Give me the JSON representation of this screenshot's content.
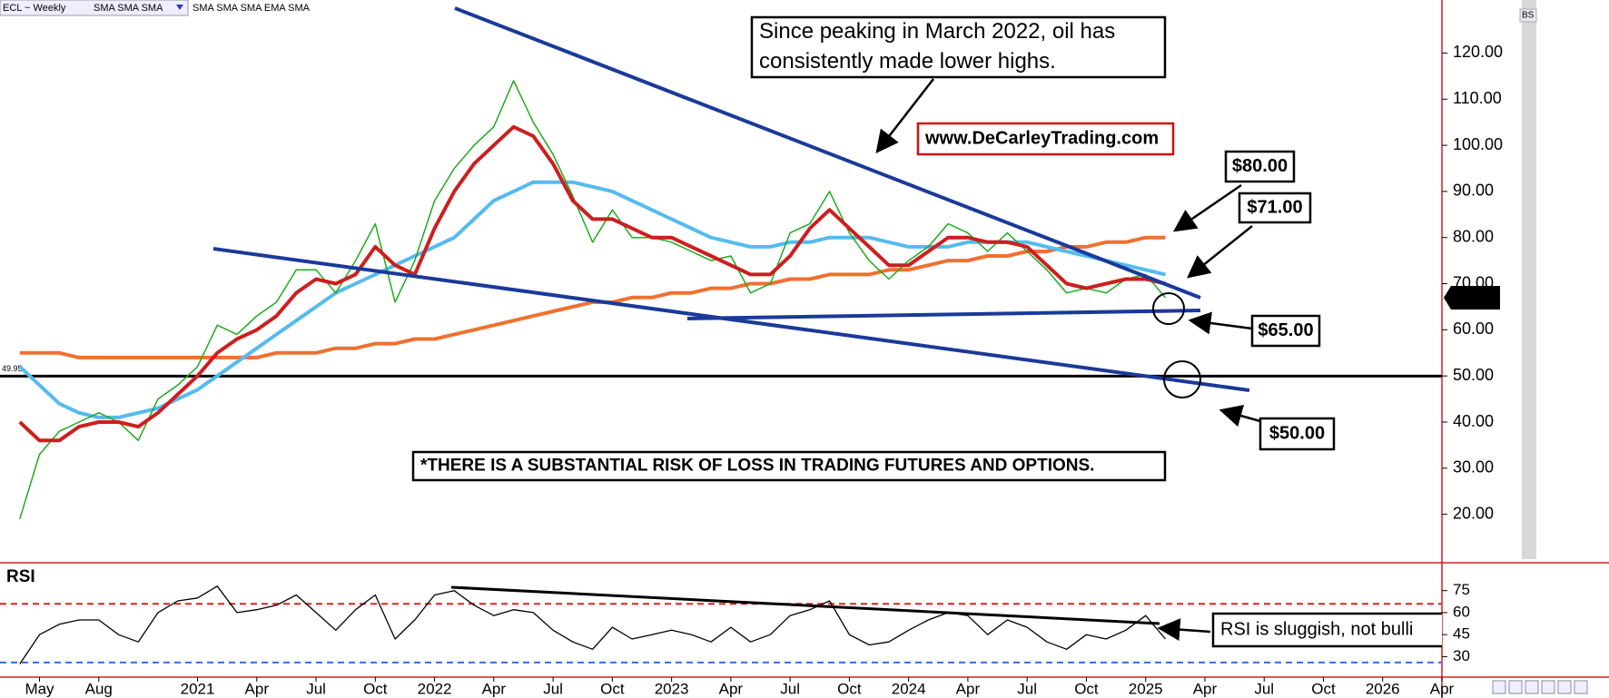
{
  "ui": {
    "symbol_label": "ECL ~ Weekly",
    "study_menu": "SMA SMA SMA",
    "studies": "SMA SMA SMA EMA SMA",
    "corner_label": "BS"
  },
  "chart_data": [
    {
      "type": "line",
      "x": [
        "2020-04",
        "2020-05",
        "2020-06",
        "2020-07",
        "2020-08",
        "2020-09",
        "2020-10",
        "2020-11",
        "2020-12",
        "2021-01",
        "2021-02",
        "2021-03",
        "2021-04",
        "2021-05",
        "2021-06",
        "2021-07",
        "2021-08",
        "2021-09",
        "2021-10",
        "2021-11",
        "2021-12",
        "2022-01",
        "2022-02",
        "2022-03",
        "2022-04",
        "2022-05",
        "2022-06",
        "2022-07",
        "2022-08",
        "2022-09",
        "2022-10",
        "2022-11",
        "2022-12",
        "2023-01",
        "2023-02",
        "2023-03",
        "2023-04",
        "2023-05",
        "2023-06",
        "2023-07",
        "2023-08",
        "2023-09",
        "2023-10",
        "2023-11",
        "2023-12",
        "2024-01",
        "2024-02",
        "2024-03",
        "2024-04",
        "2024-05",
        "2024-06",
        "2024-07",
        "2024-08",
        "2024-09",
        "2024-10",
        "2024-11",
        "2024-12",
        "2025-01",
        "2025-02"
      ],
      "xlim": [
        "2020-03",
        "2026-04"
      ],
      "ylim": [
        9.5,
        131.5
      ],
      "yticks": [
        {
          "value": 20,
          "label": "20.00"
        },
        {
          "value": 30,
          "label": "30.00"
        },
        {
          "value": 40,
          "label": "40.00"
        },
        {
          "value": 50,
          "label": "50.00"
        },
        {
          "value": 60,
          "label": "60.00"
        },
        {
          "value": 70,
          "label": "70.00"
        },
        {
          "value": 80,
          "label": "80.00"
        },
        {
          "value": 90,
          "label": "90.00"
        },
        {
          "value": 100,
          "label": "100.00"
        },
        {
          "value": 110,
          "label": "110.00"
        },
        {
          "value": 120,
          "label": "120.00"
        }
      ],
      "grid": false,
      "series": [
        {
          "color": "#f07030",
          "line_width": 4,
          "values": [
            55,
            55,
            55,
            54,
            54,
            54,
            54,
            54,
            54,
            54,
            54,
            54,
            54,
            55,
            55,
            55,
            56,
            56,
            57,
            57,
            58,
            58,
            59,
            60,
            61,
            62,
            63,
            64,
            65,
            66,
            66,
            67,
            67,
            68,
            68,
            69,
            69,
            70,
            70,
            71,
            71,
            72,
            72,
            72,
            73,
            73,
            74,
            75,
            75,
            76,
            76,
            77,
            77,
            78,
            78,
            79,
            79,
            80,
            80
          ]
        },
        {
          "color": "#55bbee",
          "line_width": 4,
          "values": [
            52,
            48,
            44,
            42,
            41,
            41,
            42,
            43,
            45,
            47,
            50,
            53,
            56,
            59,
            62,
            65,
            68,
            70,
            72,
            74,
            76,
            78,
            80,
            84,
            88,
            90,
            92,
            92,
            92,
            91,
            90,
            88,
            86,
            84,
            82,
            80,
            79,
            78,
            78,
            79,
            79,
            80,
            80,
            80,
            79,
            78,
            78,
            78,
            79,
            79,
            79,
            79,
            78,
            77,
            76,
            75,
            74,
            73,
            72
          ]
        },
        {
          "color": "#1faa1f",
          "line_width": 1.5,
          "values": [
            19,
            33,
            38,
            40,
            42,
            40,
            36,
            45,
            48,
            52,
            61,
            59,
            63,
            66,
            73,
            73,
            68,
            75,
            83,
            66,
            75,
            88,
            95,
            100,
            104,
            114,
            105,
            98,
            89,
            79,
            86,
            80,
            80,
            79,
            77,
            75,
            76,
            68,
            70,
            81,
            83,
            90,
            81,
            75,
            71,
            75,
            78,
            83,
            81,
            77,
            81,
            77,
            73,
            68,
            69,
            68,
            71,
            72,
            66.97
          ]
        },
        {
          "color": "#cc1f1f",
          "line_width": 4,
          "values": [
            40,
            36,
            36,
            39,
            40,
            40,
            39,
            42,
            46,
            50,
            55,
            58,
            60,
            63,
            68,
            71,
            70,
            72,
            78,
            74,
            72,
            82,
            90,
            96,
            100,
            104,
            102,
            96,
            88,
            84,
            84,
            82,
            80,
            80,
            78,
            76,
            74,
            72,
            72,
            76,
            82,
            86,
            82,
            78,
            74,
            74,
            77,
            80,
            80,
            79,
            79,
            78,
            74,
            70,
            69,
            70,
            71,
            71,
            70
          ]
        }
      ],
      "level_line": {
        "value": 49.95,
        "label": "49.95"
      },
      "annotations": [
        {
          "lines": [
            "Since peaking in March 2022, oil has",
            "consistently made lower highs."
          ]
        },
        {
          "text": "www.DeCarleyTrading.com"
        },
        {
          "text": "$80.00"
        },
        {
          "text": "$71.00"
        },
        {
          "text": "$65.00"
        },
        {
          "text": "$50.00"
        },
        {
          "text": "*THERE IS A SUBSTANTIAL RISK OF LOSS IN TRADING FUTURES AND OPTIONS."
        }
      ]
    },
    {
      "type": "line",
      "title": "RSI",
      "x": [
        "2020-04",
        "2020-05",
        "2020-06",
        "2020-07",
        "2020-08",
        "2020-09",
        "2020-10",
        "2020-11",
        "2020-12",
        "2021-01",
        "2021-02",
        "2021-03",
        "2021-04",
        "2021-05",
        "2021-06",
        "2021-07",
        "2021-08",
        "2021-09",
        "2021-10",
        "2021-11",
        "2021-12",
        "2022-01",
        "2022-02",
        "2022-03",
        "2022-04",
        "2022-05",
        "2022-06",
        "2022-07",
        "2022-08",
        "2022-09",
        "2022-10",
        "2022-11",
        "2022-12",
        "2023-01",
        "2023-02",
        "2023-03",
        "2023-04",
        "2023-05",
        "2023-06",
        "2023-07",
        "2023-08",
        "2023-09",
        "2023-10",
        "2023-11",
        "2023-12",
        "2024-01",
        "2024-02",
        "2024-03",
        "2024-04",
        "2024-05",
        "2024-06",
        "2024-07",
        "2024-08",
        "2024-09",
        "2024-10",
        "2024-11",
        "2024-12",
        "2025-01",
        "2025-02"
      ],
      "xlim": [
        "2020-03",
        "2026-04"
      ],
      "xticks": [
        {
          "value": "2020-05",
          "label": "May"
        },
        {
          "value": "2020-08",
          "label": "Aug"
        },
        {
          "value": "2021-01",
          "label": "2021"
        },
        {
          "value": "2021-04",
          "label": "Apr"
        },
        {
          "value": "2021-07",
          "label": "Jul"
        },
        {
          "value": "2021-10",
          "label": "Oct"
        },
        {
          "value": "2022-01",
          "label": "2022"
        },
        {
          "value": "2022-04",
          "label": "Apr"
        },
        {
          "value": "2022-07",
          "label": "Jul"
        },
        {
          "value": "2022-10",
          "label": "Oct"
        },
        {
          "value": "2023-01",
          "label": "2023"
        },
        {
          "value": "2023-04",
          "label": "Apr"
        },
        {
          "value": "2023-07",
          "label": "Jul"
        },
        {
          "value": "2023-10",
          "label": "Oct"
        },
        {
          "value": "2024-01",
          "label": "2024"
        },
        {
          "value": "2024-04",
          "label": "Apr"
        },
        {
          "value": "2024-07",
          "label": "Jul"
        },
        {
          "value": "2024-10",
          "label": "Oct"
        },
        {
          "value": "2025-01",
          "label": "2025"
        },
        {
          "value": "2025-04",
          "label": "Apr"
        },
        {
          "value": "2025-07",
          "label": "Jul"
        },
        {
          "value": "2025-10",
          "label": "Oct"
        },
        {
          "value": "2026-01",
          "label": "2026"
        },
        {
          "value": "2026-04",
          "label": "Apr"
        }
      ],
      "ylim": [
        16,
        94
      ],
      "yticks": [
        30,
        45,
        60,
        75
      ],
      "grid": false,
      "reference_lines": [
        {
          "value": 66,
          "color": "#e02020"
        },
        {
          "value": 26,
          "color": "#3070e0"
        }
      ],
      "series": [
        {
          "color": "#000000",
          "line_width": 1.3,
          "values": [
            25,
            45,
            52,
            55,
            55,
            45,
            40,
            60,
            68,
            70,
            78,
            60,
            62,
            65,
            72,
            60,
            48,
            62,
            72,
            42,
            55,
            72,
            75,
            65,
            58,
            62,
            60,
            48,
            40,
            35,
            50,
            42,
            45,
            48,
            45,
            40,
            50,
            40,
            45,
            58,
            62,
            68,
            45,
            38,
            40,
            48,
            55,
            60,
            58,
            45,
            55,
            50,
            40,
            35,
            45,
            42,
            48,
            58,
            42
          ]
        }
      ],
      "annotations": [
        {
          "text": "RSI is sluggish, not bulli"
        }
      ]
    }
  ]
}
